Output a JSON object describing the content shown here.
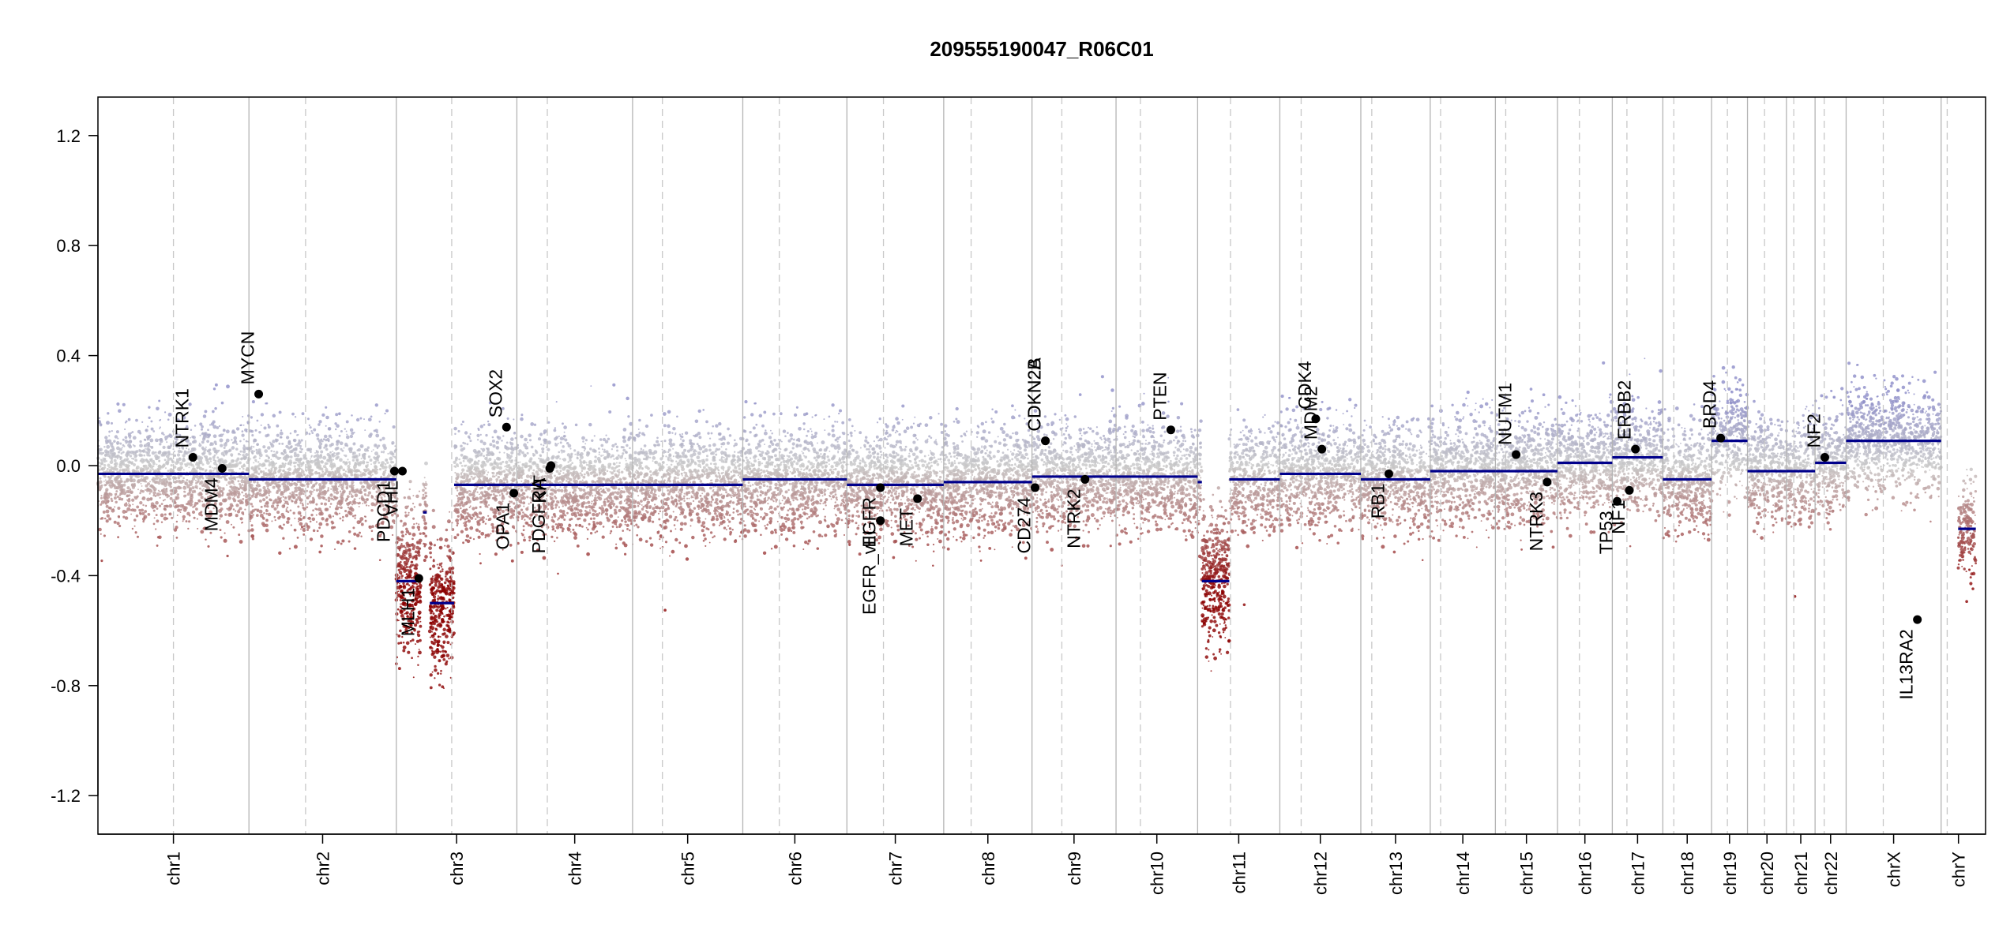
{
  "chart_data": {
    "type": "scatter",
    "title": "209555190047_R06C01",
    "xlabel": "",
    "ylabel": "",
    "ylim": [
      -1.34,
      1.34
    ],
    "y_ticks": [
      1.2,
      0.8,
      0.4,
      0.0,
      -0.4,
      -0.8,
      -1.2
    ],
    "y_tick_labels": [
      "1.2",
      "0.8",
      "0.4",
      "0.0",
      "-0.4",
      "-0.8",
      "-1.2"
    ],
    "x_unit": "Mb (cumulative genome position)",
    "xlim": [
      0,
      3100
    ],
    "chromosomes": [
      {
        "name": "chr1",
        "start": 0,
        "end": 248,
        "centromere": 124
      },
      {
        "name": "chr2",
        "start": 248,
        "end": 490,
        "centromere": 341
      },
      {
        "name": "chr3",
        "start": 490,
        "end": 688,
        "centromere": 581
      },
      {
        "name": "chr4",
        "start": 688,
        "end": 878,
        "centromere": 738
      },
      {
        "name": "chr5",
        "start": 878,
        "end": 1059,
        "centromere": 927
      },
      {
        "name": "chr6",
        "start": 1059,
        "end": 1230,
        "centromere": 1119
      },
      {
        "name": "chr7",
        "start": 1230,
        "end": 1389,
        "centromere": 1290
      },
      {
        "name": "chr8",
        "start": 1389,
        "end": 1534,
        "centromere": 1434
      },
      {
        "name": "chr9",
        "start": 1534,
        "end": 1672,
        "centromere": 1583
      },
      {
        "name": "chr10",
        "start": 1672,
        "end": 1806,
        "centromere": 1712
      },
      {
        "name": "chr11",
        "start": 1806,
        "end": 1941,
        "centromere": 1860
      },
      {
        "name": "chr12",
        "start": 1941,
        "end": 2074,
        "centromere": 1976
      },
      {
        "name": "chr13",
        "start": 2074,
        "end": 2188,
        "centromere": 2092
      },
      {
        "name": "chr14",
        "start": 2188,
        "end": 2295,
        "centromere": 2205
      },
      {
        "name": "chr15",
        "start": 2295,
        "end": 2397,
        "centromere": 2312
      },
      {
        "name": "chr16",
        "start": 2397,
        "end": 2487,
        "centromere": 2433
      },
      {
        "name": "chr17",
        "start": 2487,
        "end": 2570,
        "centromere": 2511
      },
      {
        "name": "chr18",
        "start": 2570,
        "end": 2650,
        "centromere": 2588
      },
      {
        "name": "chr19",
        "start": 2650,
        "end": 2709,
        "centromere": 2676
      },
      {
        "name": "chr20",
        "start": 2709,
        "end": 2773,
        "centromere": 2737
      },
      {
        "name": "chr21",
        "start": 2773,
        "end": 2820,
        "centromere": 2785
      },
      {
        "name": "chr22",
        "start": 2820,
        "end": 2871,
        "centromere": 2835
      },
      {
        "name": "chrX",
        "start": 2871,
        "end": 3027,
        "centromere": 2932
      },
      {
        "name": "chrY",
        "start": 3027,
        "end": 3084,
        "centromere": 3037
      }
    ],
    "segments": [
      {
        "x0": 0,
        "x1": 190,
        "y": -0.03
      },
      {
        "x0": 190,
        "x1": 248,
        "y": -0.03
      },
      {
        "x0": 248,
        "x1": 490,
        "y": -0.05
      },
      {
        "x0": 490,
        "x1": 530,
        "y": -0.42
      },
      {
        "x0": 534,
        "x1": 540,
        "y": -0.17
      },
      {
        "x0": 545,
        "x1": 585,
        "y": -0.5
      },
      {
        "x0": 585,
        "x1": 688,
        "y": -0.07
      },
      {
        "x0": 688,
        "x1": 878,
        "y": -0.07
      },
      {
        "x0": 878,
        "x1": 1059,
        "y": -0.07
      },
      {
        "x0": 1059,
        "x1": 1230,
        "y": -0.05
      },
      {
        "x0": 1230,
        "x1": 1389,
        "y": -0.07
      },
      {
        "x0": 1389,
        "x1": 1534,
        "y": -0.06
      },
      {
        "x0": 1534,
        "x1": 1672,
        "y": -0.04
      },
      {
        "x0": 1672,
        "x1": 1806,
        "y": -0.04
      },
      {
        "x0": 1806,
        "x1": 1813,
        "y": -0.06
      },
      {
        "x0": 1813,
        "x1": 1858,
        "y": -0.42
      },
      {
        "x0": 1858,
        "x1": 1941,
        "y": -0.05
      },
      {
        "x0": 1941,
        "x1": 2074,
        "y": -0.03
      },
      {
        "x0": 2074,
        "x1": 2188,
        "y": -0.05
      },
      {
        "x0": 2188,
        "x1": 2295,
        "y": -0.02
      },
      {
        "x0": 2295,
        "x1": 2397,
        "y": -0.02
      },
      {
        "x0": 2397,
        "x1": 2487,
        "y": 0.01
      },
      {
        "x0": 2487,
        "x1": 2570,
        "y": 0.03
      },
      {
        "x0": 2570,
        "x1": 2650,
        "y": -0.05
      },
      {
        "x0": 2650,
        "x1": 2709,
        "y": 0.09
      },
      {
        "x0": 2709,
        "x1": 2773,
        "y": -0.02
      },
      {
        "x0": 2773,
        "x1": 2820,
        "y": -0.02
      },
      {
        "x0": 2820,
        "x1": 2871,
        "y": 0.01
      },
      {
        "x0": 2871,
        "x1": 3027,
        "y": 0.09
      },
      {
        "x0": 3055,
        "x1": 3084,
        "y": -0.23
      }
    ],
    "genes": [
      {
        "name": "NTRK1",
        "x": 156,
        "y": 0.03,
        "label_side": "above"
      },
      {
        "name": "MDM4",
        "x": 204,
        "y": -0.01,
        "label_side": "below"
      },
      {
        "name": "MYCN",
        "x": 264,
        "y": 0.26,
        "label_side": "above"
      },
      {
        "name": "PDCD1",
        "x": 487,
        "y": -0.02,
        "label_side": "below"
      },
      {
        "name": "VHL",
        "x": 500,
        "y": -0.02,
        "label_side": "below"
      },
      {
        "name": "MLH1",
        "x": 527,
        "y": -0.41,
        "label_side": "below"
      },
      {
        "name": "SOX2",
        "x": 671,
        "y": 0.14,
        "label_side": "above"
      },
      {
        "name": "OPA1",
        "x": 683,
        "y": -0.1,
        "label_side": "below"
      },
      {
        "name": "PDGFRA",
        "x": 742,
        "y": -0.01,
        "label_side": "below"
      },
      {
        "name": "KIT",
        "x": 744,
        "y": 0.0,
        "label_side": "below"
      },
      {
        "name": "EGFR",
        "x": 1285,
        "y": -0.08,
        "label_side": "below"
      },
      {
        "name": "EGFR_vIII",
        "x": 1285,
        "y": -0.2,
        "label_side": "below"
      },
      {
        "name": "MET",
        "x": 1346,
        "y": -0.12,
        "label_side": "below"
      },
      {
        "name": "CD274",
        "x": 1539,
        "y": -0.08,
        "label_side": "below"
      },
      {
        "name": "CDKN2A",
        "x": 1556,
        "y": 0.09,
        "label_side": "above"
      },
      {
        "name": "CDKN2B",
        "x": 1556,
        "y": 0.09,
        "label_side": "above"
      },
      {
        "name": "NTRK2",
        "x": 1621,
        "y": -0.05,
        "label_side": "below"
      },
      {
        "name": "PTEN",
        "x": 1762,
        "y": 0.13,
        "label_side": "above"
      },
      {
        "name": "CDK4",
        "x": 2000,
        "y": 0.17,
        "label_side": "above"
      },
      {
        "name": "MDM2",
        "x": 2010,
        "y": 0.06,
        "label_side": "above"
      },
      {
        "name": "RB1",
        "x": 2120,
        "y": -0.03,
        "label_side": "below"
      },
      {
        "name": "NUTM1",
        "x": 2329,
        "y": 0.04,
        "label_side": "above"
      },
      {
        "name": "NTRK3",
        "x": 2380,
        "y": -0.06,
        "label_side": "below"
      },
      {
        "name": "TP53",
        "x": 2495,
        "y": -0.13,
        "label_side": "below"
      },
      {
        "name": "NF1",
        "x": 2515,
        "y": -0.09,
        "label_side": "below"
      },
      {
        "name": "ERBB2",
        "x": 2525,
        "y": 0.06,
        "label_side": "above"
      },
      {
        "name": "BRD4",
        "x": 2665,
        "y": 0.1,
        "label_side": "above"
      },
      {
        "name": "NF2",
        "x": 2836,
        "y": 0.03,
        "label_side": "above"
      },
      {
        "name": "IL13RA2",
        "x": 2988,
        "y": -0.56,
        "label_side": "below"
      }
    ],
    "colors": {
      "segment": "#00008b",
      "gain": "#8c8cc8",
      "loss": "#8b0000",
      "neutral": "#c8c8c8",
      "gene_point": "#000000",
      "chrom_boundary": "#b4b4b4",
      "centromere": "#c8c8c8",
      "axis": "#000000"
    },
    "grid": false,
    "legend": "none"
  }
}
